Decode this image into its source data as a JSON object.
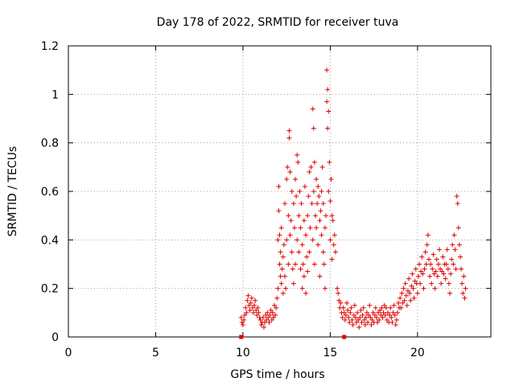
{
  "chart_data": {
    "type": "scatter",
    "title": "Day 178 of 2022, SRMTID for receiver tuva",
    "xlabel": "GPS time / hours",
    "ylabel": "SRMTID / TECUs",
    "xlim": [
      0,
      24.2
    ],
    "ylim": [
      0,
      1.2
    ],
    "x_ticks": [
      0,
      5,
      10,
      15,
      20
    ],
    "x_tick_labels": [
      "0",
      "5",
      "10",
      "15",
      "20"
    ],
    "y_ticks": [
      0,
      0.2,
      0.4,
      0.6,
      0.8,
      1.0,
      1.2
    ],
    "y_tick_labels": [
      "0",
      "0.2",
      "0.4",
      "0.6",
      "0.8",
      "1",
      "1.2"
    ],
    "grid": true,
    "marker": "+",
    "color": "#dd0000",
    "baseline_marks": [
      9.9,
      15.8
    ],
    "series": [
      {
        "name": "SRMTID",
        "points": [
          [
            9.9,
            0.08
          ],
          [
            9.95,
            0.06
          ],
          [
            10.0,
            0.05
          ],
          [
            10.05,
            0.07
          ],
          [
            10.1,
            0.09
          ],
          [
            10.15,
            0.12
          ],
          [
            10.2,
            0.1
          ],
          [
            10.25,
            0.15
          ],
          [
            10.3,
            0.17
          ],
          [
            10.35,
            0.13
          ],
          [
            10.4,
            0.11
          ],
          [
            10.45,
            0.14
          ],
          [
            10.5,
            0.16
          ],
          [
            10.55,
            0.12
          ],
          [
            10.6,
            0.1
          ],
          [
            10.65,
            0.13
          ],
          [
            10.7,
            0.15
          ],
          [
            10.75,
            0.11
          ],
          [
            10.8,
            0.09
          ],
          [
            10.85,
            0.12
          ],
          [
            10.9,
            0.1
          ],
          [
            10.95,
            0.08
          ],
          [
            11.0,
            0.07
          ],
          [
            11.05,
            0.05
          ],
          [
            11.1,
            0.06
          ],
          [
            11.15,
            0.08
          ],
          [
            11.2,
            0.04
          ],
          [
            11.25,
            0.06
          ],
          [
            11.3,
            0.09
          ],
          [
            11.35,
            0.07
          ],
          [
            11.4,
            0.1
          ],
          [
            11.45,
            0.08
          ],
          [
            11.5,
            0.06
          ],
          [
            11.55,
            0.09
          ],
          [
            11.6,
            0.11
          ],
          [
            11.65,
            0.07
          ],
          [
            11.7,
            0.1
          ],
          [
            11.75,
            0.08
          ],
          [
            11.8,
            0.13
          ],
          [
            11.85,
            0.09
          ],
          [
            11.9,
            0.12
          ],
          [
            11.95,
            0.16
          ],
          [
            12.0,
            0.2
          ],
          [
            12.0,
            0.4
          ],
          [
            12.05,
            0.62
          ],
          [
            12.05,
            0.52
          ],
          [
            12.1,
            0.3
          ],
          [
            12.1,
            0.42
          ],
          [
            12.15,
            0.35
          ],
          [
            12.15,
            0.25
          ],
          [
            12.2,
            0.22
          ],
          [
            12.2,
            0.45
          ],
          [
            12.25,
            0.28
          ],
          [
            12.3,
            0.18
          ],
          [
            12.3,
            0.33
          ],
          [
            12.35,
            0.38
          ],
          [
            12.4,
            0.55
          ],
          [
            12.4,
            0.25
          ],
          [
            12.45,
            0.2
          ],
          [
            12.5,
            0.4
          ],
          [
            12.5,
            0.65
          ],
          [
            12.55,
            0.7
          ],
          [
            12.6,
            0.5
          ],
          [
            12.6,
            0.3
          ],
          [
            12.65,
            0.85
          ],
          [
            12.65,
            0.82
          ],
          [
            12.7,
            0.68
          ],
          [
            12.7,
            0.42
          ],
          [
            12.75,
            0.48
          ],
          [
            12.8,
            0.6
          ],
          [
            12.8,
            0.35
          ],
          [
            12.85,
            0.28
          ],
          [
            12.9,
            0.55
          ],
          [
            12.9,
            0.22
          ],
          [
            12.95,
            0.45
          ],
          [
            13.0,
            0.3
          ],
          [
            13.0,
            0.65
          ],
          [
            13.05,
            0.58
          ],
          [
            13.1,
            0.75
          ],
          [
            13.1,
            0.4
          ],
          [
            13.15,
            0.72
          ],
          [
            13.2,
            0.5
          ],
          [
            13.2,
            0.35
          ],
          [
            13.25,
            0.6
          ],
          [
            13.3,
            0.28
          ],
          [
            13.3,
            0.45
          ],
          [
            13.35,
            0.55
          ],
          [
            13.4,
            0.38
          ],
          [
            13.4,
            0.2
          ],
          [
            13.45,
            0.3
          ],
          [
            13.5,
            0.48
          ],
          [
            13.5,
            0.25
          ],
          [
            13.55,
            0.62
          ],
          [
            13.6,
            0.42
          ],
          [
            13.6,
            0.18
          ],
          [
            13.65,
            0.33
          ],
          [
            13.7,
            0.5
          ],
          [
            13.7,
            0.27
          ],
          [
            13.75,
            0.58
          ],
          [
            13.8,
            0.68
          ],
          [
            13.8,
            0.35
          ],
          [
            13.85,
            0.45
          ],
          [
            13.9,
            0.7
          ],
          [
            13.95,
            0.55
          ],
          [
            14.0,
            0.94
          ],
          [
            14.0,
            0.4
          ],
          [
            14.05,
            0.86
          ],
          [
            14.05,
            0.6
          ],
          [
            14.1,
            0.72
          ],
          [
            14.1,
            0.3
          ],
          [
            14.15,
            0.5
          ],
          [
            14.2,
            0.65
          ],
          [
            14.2,
            0.45
          ],
          [
            14.25,
            0.55
          ],
          [
            14.3,
            0.62
          ],
          [
            14.3,
            0.38
          ],
          [
            14.35,
            0.58
          ],
          [
            14.4,
            0.48
          ],
          [
            14.4,
            0.25
          ],
          [
            14.45,
            0.52
          ],
          [
            14.5,
            0.42
          ],
          [
            14.5,
            0.6
          ],
          [
            14.55,
            0.7
          ],
          [
            14.6,
            0.35
          ],
          [
            14.6,
            0.55
          ],
          [
            14.65,
            0.3
          ],
          [
            14.7,
            0.45
          ],
          [
            14.7,
            0.2
          ],
          [
            14.75,
            0.5
          ],
          [
            14.8,
            0.97
          ],
          [
            14.8,
            1.1
          ],
          [
            14.85,
            1.02
          ],
          [
            14.85,
            0.86
          ],
          [
            14.9,
            0.93
          ],
          [
            14.9,
            0.6
          ],
          [
            14.95,
            0.72
          ],
          [
            15.0,
            0.56
          ],
          [
            15.0,
            0.4
          ],
          [
            15.05,
            0.65
          ],
          [
            15.1,
            0.5
          ],
          [
            15.1,
            0.32
          ],
          [
            15.15,
            0.48
          ],
          [
            15.2,
            0.38
          ],
          [
            15.25,
            0.42
          ],
          [
            15.3,
            0.35
          ],
          [
            15.4,
            0.2
          ],
          [
            15.45,
            0.18
          ],
          [
            15.5,
            0.15
          ],
          [
            15.55,
            0.12
          ],
          [
            15.6,
            0.14
          ],
          [
            15.65,
            0.1
          ],
          [
            15.7,
            0.08
          ],
          [
            15.75,
            0.12
          ],
          [
            15.8,
            0.1
          ],
          [
            15.85,
            0.07
          ],
          [
            15.9,
            0.09
          ],
          [
            15.95,
            0.14
          ],
          [
            16.0,
            0.11
          ],
          [
            16.05,
            0.08
          ],
          [
            16.1,
            0.06
          ],
          [
            16.15,
            0.1
          ],
          [
            16.2,
            0.12
          ],
          [
            16.25,
            0.07
          ],
          [
            16.3,
            0.05
          ],
          [
            16.35,
            0.09
          ],
          [
            16.4,
            0.13
          ],
          [
            16.45,
            0.08
          ],
          [
            16.5,
            0.06
          ],
          [
            16.55,
            0.1
          ],
          [
            16.6,
            0.07
          ],
          [
            16.65,
            0.04
          ],
          [
            16.7,
            0.08
          ],
          [
            16.75,
            0.11
          ],
          [
            16.8,
            0.06
          ],
          [
            16.85,
            0.09
          ],
          [
            16.9,
            0.12
          ],
          [
            16.95,
            0.07
          ],
          [
            17.0,
            0.05
          ],
          [
            17.05,
            0.08
          ],
          [
            17.1,
            0.1
          ],
          [
            17.15,
            0.06
          ],
          [
            17.2,
            0.09
          ],
          [
            17.25,
            0.13
          ],
          [
            17.3,
            0.08
          ],
          [
            17.35,
            0.05
          ],
          [
            17.4,
            0.07
          ],
          [
            17.45,
            0.1
          ],
          [
            17.5,
            0.06
          ],
          [
            17.55,
            0.09
          ],
          [
            17.6,
            0.12
          ],
          [
            17.65,
            0.08
          ],
          [
            17.7,
            0.06
          ],
          [
            17.75,
            0.1
          ],
          [
            17.8,
            0.07
          ],
          [
            17.85,
            0.11
          ],
          [
            17.9,
            0.09
          ],
          [
            17.95,
            0.12
          ],
          [
            18.0,
            0.08
          ],
          [
            18.05,
            0.1
          ],
          [
            18.1,
            0.13
          ],
          [
            18.15,
            0.09
          ],
          [
            18.2,
            0.12
          ],
          [
            18.25,
            0.07
          ],
          [
            18.3,
            0.1
          ],
          [
            18.35,
            0.06
          ],
          [
            18.4,
            0.09
          ],
          [
            18.45,
            0.12
          ],
          [
            18.5,
            0.08
          ],
          [
            18.55,
            0.06
          ],
          [
            18.6,
            0.1
          ],
          [
            18.65,
            0.13
          ],
          [
            18.7,
            0.09
          ],
          [
            18.75,
            0.05
          ],
          [
            18.8,
            0.07
          ],
          [
            18.85,
            0.1
          ],
          [
            18.9,
            0.14
          ],
          [
            18.95,
            0.12
          ],
          [
            19.0,
            0.16
          ],
          [
            19.05,
            0.12
          ],
          [
            19.1,
            0.18
          ],
          [
            19.15,
            0.14
          ],
          [
            19.2,
            0.2
          ],
          [
            19.25,
            0.15
          ],
          [
            19.3,
            0.22
          ],
          [
            19.35,
            0.17
          ],
          [
            19.4,
            0.13
          ],
          [
            19.45,
            0.19
          ],
          [
            19.5,
            0.24
          ],
          [
            19.55,
            0.18
          ],
          [
            19.6,
            0.15
          ],
          [
            19.65,
            0.21
          ],
          [
            19.7,
            0.26
          ],
          [
            19.75,
            0.2
          ],
          [
            19.8,
            0.16
          ],
          [
            19.85,
            0.23
          ],
          [
            19.9,
            0.28
          ],
          [
            19.95,
            0.22
          ],
          [
            20.0,
            0.18
          ],
          [
            20.05,
            0.25
          ],
          [
            20.1,
            0.3
          ],
          [
            20.15,
            0.22
          ],
          [
            20.2,
            0.27
          ],
          [
            20.25,
            0.33
          ],
          [
            20.3,
            0.26
          ],
          [
            20.35,
            0.2
          ],
          [
            20.4,
            0.28
          ],
          [
            20.45,
            0.35
          ],
          [
            20.5,
            0.3
          ],
          [
            20.55,
            0.38
          ],
          [
            20.6,
            0.42
          ],
          [
            20.65,
            0.32
          ],
          [
            20.7,
            0.25
          ],
          [
            20.75,
            0.3
          ],
          [
            20.8,
            0.22
          ],
          [
            20.85,
            0.28
          ],
          [
            20.9,
            0.34
          ],
          [
            20.95,
            0.26
          ],
          [
            21.0,
            0.2
          ],
          [
            21.05,
            0.27
          ],
          [
            21.1,
            0.32
          ],
          [
            21.15,
            0.25
          ],
          [
            21.2,
            0.3
          ],
          [
            21.25,
            0.36
          ],
          [
            21.3,
            0.28
          ],
          [
            21.35,
            0.22
          ],
          [
            21.4,
            0.27
          ],
          [
            21.45,
            0.33
          ],
          [
            21.5,
            0.26
          ],
          [
            21.55,
            0.3
          ],
          [
            21.6,
            0.24
          ],
          [
            21.65,
            0.3
          ],
          [
            21.7,
            0.36
          ],
          [
            21.75,
            0.28
          ],
          [
            21.8,
            0.22
          ],
          [
            21.85,
            0.18
          ],
          [
            21.9,
            0.26
          ],
          [
            21.95,
            0.32
          ],
          [
            22.0,
            0.38
          ],
          [
            22.05,
            0.3
          ],
          [
            22.1,
            0.42
          ],
          [
            22.15,
            0.36
          ],
          [
            22.2,
            0.28
          ],
          [
            22.25,
            0.58
          ],
          [
            22.3,
            0.55
          ],
          [
            22.35,
            0.45
          ],
          [
            22.4,
            0.38
          ],
          [
            22.45,
            0.33
          ],
          [
            22.5,
            0.28
          ],
          [
            22.55,
            0.22
          ],
          [
            22.6,
            0.18
          ],
          [
            22.65,
            0.25
          ],
          [
            22.7,
            0.16
          ],
          [
            22.75,
            0.2
          ]
        ]
      }
    ]
  }
}
